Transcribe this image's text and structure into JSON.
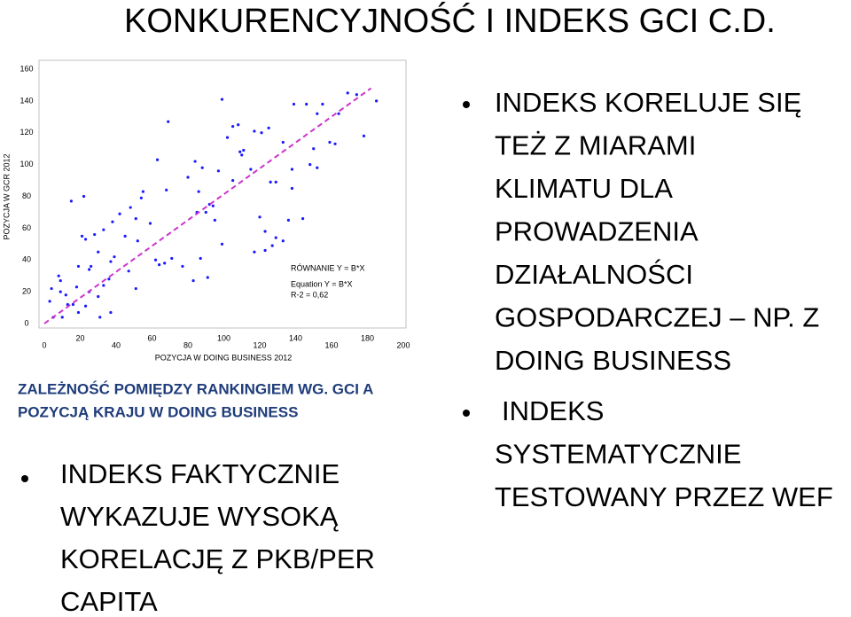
{
  "title": "KONKURENCYJNOŚĆ I INDEKS GCI C.D.",
  "chart_data": {
    "type": "scatter",
    "x_label": "POZYCJA W DOING BUSINESS 2012",
    "y_label": "POZYCJA W GCR 2012",
    "xlim": [
      0,
      200
    ],
    "xticks": [
      0,
      20,
      40,
      60,
      80,
      100,
      120,
      140,
      160,
      180,
      200
    ],
    "ylim": [
      0,
      160
    ],
    "yticks": [
      0,
      20,
      40,
      60,
      80,
      100,
      120,
      140,
      160
    ],
    "color": "#1a1aff",
    "x": [
      99,
      169,
      174,
      185,
      155,
      146,
      139,
      152,
      164,
      69,
      105,
      108,
      125,
      121,
      117,
      178,
      102,
      133,
      159,
      162,
      63,
      84,
      110,
      109,
      111,
      150,
      148,
      152,
      138,
      115,
      97,
      88,
      80,
      126,
      129,
      138,
      105,
      68,
      55,
      54,
      15,
      22,
      86,
      92,
      90,
      95,
      94,
      85,
      48,
      42,
      51,
      59,
      38,
      33,
      28,
      21,
      23,
      45,
      52,
      120,
      123,
      129,
      133,
      144,
      136,
      127,
      62,
      64,
      67,
      71,
      87,
      83,
      91,
      39,
      37,
      30,
      25,
      47,
      51,
      36,
      33,
      18,
      25,
      30,
      9,
      9,
      4,
      3,
      13,
      19,
      31,
      37,
      23,
      16,
      10,
      5,
      12,
      19,
      26,
      8,
      77,
      99,
      117,
      123
    ],
    "values": [
      141,
      145,
      144,
      140,
      138,
      138,
      138,
      132,
      132,
      127,
      124,
      125,
      123,
      120,
      121,
      118,
      117,
      114,
      114,
      113,
      103,
      102,
      106,
      108,
      109,
      110,
      100,
      98,
      97,
      97,
      96,
      98,
      92,
      89,
      89,
      85,
      90,
      84,
      83,
      79,
      77,
      80,
      83,
      75,
      70,
      65,
      74,
      70,
      73,
      69,
      66,
      63,
      64,
      59,
      56,
      55,
      53,
      55,
      52,
      67,
      58,
      54,
      52,
      66,
      65,
      49,
      40,
      37,
      38,
      41,
      41,
      27,
      29,
      42,
      39,
      45,
      34,
      33,
      22,
      28,
      24,
      23,
      20,
      17,
      27,
      20,
      22,
      14,
      12,
      7,
      4,
      7,
      11,
      12,
      4,
      4,
      18,
      36,
      36,
      30,
      36,
      50,
      45,
      46
    ],
    "fit": {
      "x": [
        0,
        182
      ],
      "y": [
        0,
        148
      ],
      "color": "#cc33cc"
    },
    "annotations": [
      "RÓWNANIE Y = B*X",
      "Equation Y = B*X",
      "R-2 = 0,62"
    ]
  },
  "caption": [
    "ZALEŻNOŚĆ POMIĘDZY RANKINGIEM WG. GCI A",
    "POZYCJĄ KRAJU W DOING BUSINESS"
  ],
  "left_bullet": [
    "INDEKS FAKTYCZNIE",
    "WYKAZUJE WYSOKĄ",
    "KORELACJĘ Z PKB/PER",
    "CAPITA"
  ],
  "right_bullets": [
    [
      "INDEKS KORELUJE SIĘ",
      "TEŻ Z MIARAMI",
      "KLIMATU DLA",
      "PROWADZENIA",
      "DZIAŁALNOŚCI",
      "GOSPODARCZEJ – NP. Z",
      "DOING BUSINESS"
    ],
    [
      "INDEKS",
      "SYSTEMATYCZNIE",
      "TESTOWANY PRZEZ WEF"
    ]
  ]
}
